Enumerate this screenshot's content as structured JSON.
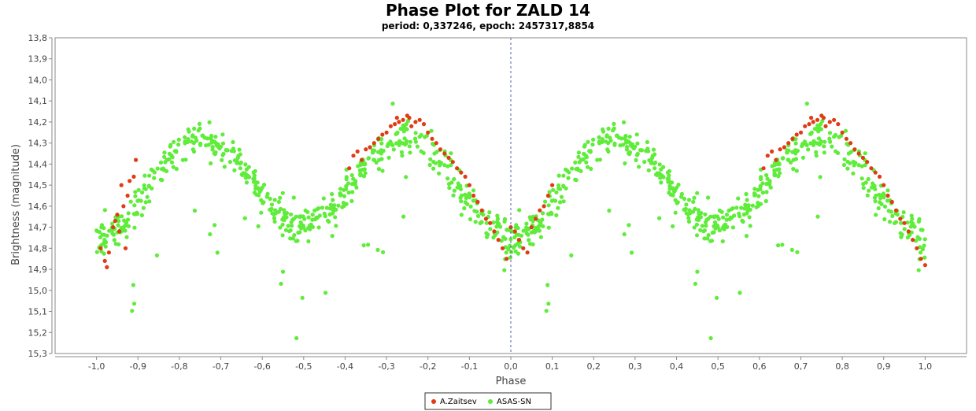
{
  "chart_data": {
    "type": "scatter",
    "title": "Phase Plot for ZALD 14",
    "subtitle": "period: 0,337246, epoch: 2457317,8854",
    "xlabel": "Phase",
    "ylabel": "Brightness (magnitude)",
    "xlim": [
      -1.1,
      1.1
    ],
    "ylim": [
      15.3,
      13.8
    ],
    "y_inverted": true,
    "x_ticks": [
      "-1,0",
      "-0,9",
      "-0,8",
      "-0,7",
      "-0,6",
      "-0,5",
      "-0,4",
      "-0,3",
      "-0,2",
      "-0,1",
      "0,0",
      "0,1",
      "0,2",
      "0,3",
      "0,4",
      "0,5",
      "0,6",
      "0,7",
      "0,8",
      "0,9",
      "1,0"
    ],
    "x_tick_values": [
      -1.0,
      -0.9,
      -0.8,
      -0.7,
      -0.6,
      -0.5,
      -0.4,
      -0.3,
      -0.2,
      -0.1,
      0.0,
      0.1,
      0.2,
      0.3,
      0.4,
      0.5,
      0.6,
      0.7,
      0.8,
      0.9,
      1.0
    ],
    "y_ticks": [
      "13,8",
      "13,9",
      "14,0",
      "14,1",
      "14,2",
      "14,3",
      "14,4",
      "14,5",
      "14,6",
      "14,7",
      "14,8",
      "14,9",
      "15,0",
      "15,1",
      "15,2",
      "15,3"
    ],
    "y_tick_values": [
      13.8,
      13.9,
      14.0,
      14.1,
      14.2,
      14.3,
      14.4,
      14.5,
      14.6,
      14.7,
      14.8,
      14.9,
      15.0,
      15.1,
      15.2,
      15.3
    ],
    "zero_line_x": 0.0,
    "grid": false,
    "legend_position": "bottom-center",
    "series": [
      {
        "name": "A.Zaitsev",
        "color": "#e03c14",
        "points": [
          [
            -0.99,
            14.8
          ],
          [
            -0.98,
            14.86
          ],
          [
            -0.975,
            14.89
          ],
          [
            -0.97,
            14.82
          ],
          [
            -0.96,
            14.7
          ],
          [
            -0.955,
            14.67
          ],
          [
            -0.95,
            14.64
          ],
          [
            -0.945,
            14.72
          ],
          [
            -0.94,
            14.5
          ],
          [
            -0.935,
            14.6
          ],
          [
            -0.93,
            14.8
          ],
          [
            -0.925,
            14.55
          ],
          [
            -0.92,
            14.48
          ],
          [
            -0.91,
            14.46
          ],
          [
            -0.905,
            14.38
          ],
          [
            -0.39,
            14.42
          ],
          [
            -0.38,
            14.36
          ],
          [
            -0.37,
            14.34
          ],
          [
            -0.36,
            14.38
          ],
          [
            -0.35,
            14.33
          ],
          [
            -0.34,
            14.32
          ],
          [
            -0.33,
            14.3
          ],
          [
            -0.32,
            14.28
          ],
          [
            -0.31,
            14.26
          ],
          [
            -0.3,
            14.25
          ],
          [
            -0.29,
            14.22
          ],
          [
            -0.28,
            14.21
          ],
          [
            -0.275,
            14.18
          ],
          [
            -0.27,
            14.2
          ],
          [
            -0.26,
            14.19
          ],
          [
            -0.25,
            14.17
          ],
          [
            -0.245,
            14.18
          ],
          [
            -0.24,
            14.22
          ],
          [
            -0.23,
            14.2
          ],
          [
            -0.22,
            14.19
          ],
          [
            -0.21,
            14.21
          ],
          [
            -0.2,
            14.25
          ],
          [
            -0.19,
            14.28
          ],
          [
            -0.18,
            14.3
          ],
          [
            -0.17,
            14.33
          ],
          [
            -0.16,
            14.35
          ],
          [
            -0.15,
            14.37
          ],
          [
            -0.14,
            14.39
          ],
          [
            -0.13,
            14.42
          ],
          [
            -0.12,
            14.44
          ],
          [
            -0.11,
            14.46
          ],
          [
            -0.1,
            14.5
          ],
          [
            -0.09,
            14.55
          ],
          [
            -0.08,
            14.58
          ],
          [
            -0.07,
            14.62
          ],
          [
            -0.06,
            14.66
          ],
          [
            -0.05,
            14.68
          ],
          [
            -0.04,
            14.72
          ],
          [
            -0.03,
            14.76
          ],
          [
            -0.02,
            14.8
          ],
          [
            -0.01,
            14.85
          ],
          [
            0.0,
            14.7
          ],
          [
            0.01,
            14.72
          ],
          [
            0.02,
            14.76
          ],
          [
            0.03,
            14.8
          ],
          [
            0.04,
            14.82
          ],
          [
            0.05,
            14.7
          ],
          [
            0.06,
            14.66
          ],
          [
            0.07,
            14.62
          ],
          [
            0.08,
            14.6
          ],
          [
            0.09,
            14.55
          ],
          [
            0.1,
            14.5
          ],
          [
            0.61,
            14.42
          ],
          [
            0.62,
            14.36
          ],
          [
            0.63,
            14.34
          ],
          [
            0.64,
            14.38
          ],
          [
            0.65,
            14.33
          ],
          [
            0.66,
            14.32
          ],
          [
            0.67,
            14.3
          ],
          [
            0.68,
            14.28
          ],
          [
            0.69,
            14.26
          ],
          [
            0.7,
            14.25
          ],
          [
            0.71,
            14.22
          ],
          [
            0.72,
            14.21
          ],
          [
            0.725,
            14.18
          ],
          [
            0.73,
            14.2
          ],
          [
            0.74,
            14.19
          ],
          [
            0.75,
            14.17
          ],
          [
            0.755,
            14.18
          ],
          [
            0.76,
            14.22
          ],
          [
            0.77,
            14.2
          ],
          [
            0.78,
            14.19
          ],
          [
            0.79,
            14.21
          ],
          [
            0.8,
            14.25
          ],
          [
            0.81,
            14.28
          ],
          [
            0.82,
            14.3
          ],
          [
            0.83,
            14.33
          ],
          [
            0.84,
            14.35
          ],
          [
            0.85,
            14.37
          ],
          [
            0.86,
            14.39
          ],
          [
            0.87,
            14.42
          ],
          [
            0.88,
            14.44
          ],
          [
            0.89,
            14.46
          ],
          [
            0.9,
            14.5
          ],
          [
            0.91,
            14.55
          ],
          [
            0.92,
            14.58
          ],
          [
            0.93,
            14.62
          ],
          [
            0.94,
            14.66
          ],
          [
            0.95,
            14.68
          ],
          [
            0.96,
            14.72
          ],
          [
            0.97,
            14.76
          ],
          [
            0.98,
            14.8
          ],
          [
            0.99,
            14.85
          ],
          [
            1.0,
            14.88
          ]
        ]
      },
      {
        "name": "ASAS-SN",
        "color": "#5fec3a"
      }
    ]
  },
  "legend": {
    "items": [
      {
        "label": "A.Zaitsev",
        "color": "#e03c14"
      },
      {
        "label": "ASAS-SN",
        "color": "#5fec3a"
      }
    ]
  }
}
